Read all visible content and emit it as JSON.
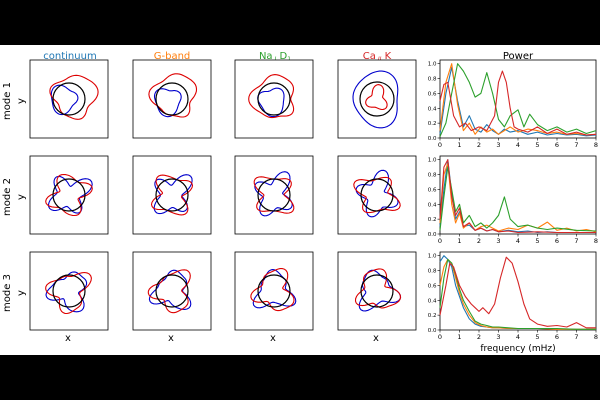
{
  "columns": [
    {
      "label": "continuum",
      "color": "#1f77b4"
    },
    {
      "label": "G-band",
      "color": "#ff7f0e"
    },
    {
      "label": "Na",
      "sub": "I",
      "label_post": " D",
      "sub2": "1",
      "color": "#2ca02c"
    },
    {
      "label": "Ca",
      "sub": "II",
      "label_post": " K",
      "color": "#d62728"
    }
  ],
  "rows": [
    {
      "label": "mode 1"
    },
    {
      "label": "mode 2"
    },
    {
      "label": "mode 3"
    }
  ],
  "axis_letters": {
    "x": "x",
    "y": "y"
  },
  "power_title": "Power",
  "chart_data": {
    "type": "line",
    "title": "Power",
    "xlabel": "frequency (mHz)",
    "ylabel": "",
    "xlim": [
      0,
      8
    ],
    "ylim": [
      0,
      1.05
    ],
    "xticks": [
      0,
      1,
      2,
      3,
      4,
      5,
      6,
      7,
      8
    ],
    "yticks": [
      0.0,
      0.2,
      0.4,
      0.6,
      0.8,
      1.0
    ],
    "series_colors": {
      "continuum": "#1f77b4",
      "G-band": "#ff7f0e",
      "Na I D1": "#2ca02c",
      "Ca II K": "#d62728"
    },
    "panels": [
      {
        "row": "mode 1",
        "series": [
          {
            "key": "continuum",
            "x": [
              0,
              0.3,
              0.6,
              0.9,
              1.2,
              1.5,
              1.8,
              2.1,
              2.4,
              2.7,
              3.0,
              3.3,
              3.6,
              4.0,
              4.5,
              5.0,
              5.5,
              6.0,
              6.5,
              7.0,
              7.5,
              8.0
            ],
            "y": [
              0.05,
              0.6,
              0.95,
              0.5,
              0.15,
              0.3,
              0.12,
              0.08,
              0.18,
              0.1,
              0.05,
              0.12,
              0.08,
              0.1,
              0.05,
              0.08,
              0.04,
              0.06,
              0.04,
              0.05,
              0.03,
              0.04
            ]
          },
          {
            "key": "G-band",
            "x": [
              0,
              0.3,
              0.6,
              0.9,
              1.2,
              1.5,
              1.8,
              2.1,
              2.4,
              2.7,
              3.0,
              3.3,
              3.6,
              4.0,
              4.5,
              5.0,
              5.5,
              6.0,
              6.5,
              7.0,
              7.5,
              8.0
            ],
            "y": [
              0.1,
              0.75,
              1.0,
              0.45,
              0.1,
              0.2,
              0.05,
              0.15,
              0.08,
              0.12,
              0.05,
              0.1,
              0.15,
              0.08,
              0.12,
              0.1,
              0.06,
              0.08,
              0.05,
              0.06,
              0.04,
              0.05
            ]
          },
          {
            "key": "Na I D1",
            "x": [
              0,
              0.3,
              0.6,
              0.9,
              1.2,
              1.5,
              1.8,
              2.1,
              2.4,
              2.7,
              3.0,
              3.3,
              3.6,
              4.0,
              4.3,
              4.6,
              5.0,
              5.5,
              6.0,
              6.5,
              7.0,
              7.5,
              8.0
            ],
            "y": [
              0.02,
              0.2,
              0.6,
              1.0,
              0.9,
              0.75,
              0.55,
              0.6,
              0.88,
              0.6,
              0.25,
              0.15,
              0.3,
              0.38,
              0.15,
              0.32,
              0.18,
              0.1,
              0.15,
              0.08,
              0.12,
              0.06,
              0.1
            ]
          },
          {
            "key": "Ca II K",
            "x": [
              0,
              0.2,
              0.4,
              0.7,
              1.0,
              1.3,
              1.6,
              2.0,
              2.4,
              2.8,
              3.0,
              3.2,
              3.4,
              3.6,
              3.8,
              4.0,
              4.5,
              5.0,
              5.5,
              6.0,
              6.5,
              7.0,
              7.5,
              8.0
            ],
            "y": [
              0.5,
              0.72,
              0.75,
              0.3,
              0.15,
              0.2,
              0.1,
              0.15,
              0.1,
              0.3,
              0.75,
              0.9,
              0.75,
              0.4,
              0.15,
              0.12,
              0.08,
              0.15,
              0.06,
              0.12,
              0.05,
              0.08,
              0.04,
              0.05
            ]
          }
        ]
      },
      {
        "row": "mode 2",
        "series": [
          {
            "key": "continuum",
            "x": [
              0,
              0.2,
              0.4,
              0.6,
              0.8,
              1.0,
              1.2,
              1.5,
              1.8,
              2.1,
              2.4,
              2.7,
              3.0,
              3.5,
              4.0,
              4.5,
              5.0,
              5.5,
              6.0,
              7.0,
              8.0
            ],
            "y": [
              0.1,
              0.6,
              1.0,
              0.55,
              0.2,
              0.3,
              0.1,
              0.12,
              0.05,
              0.08,
              0.04,
              0.06,
              0.03,
              0.05,
              0.03,
              0.04,
              0.02,
              0.03,
              0.02,
              0.02,
              0.02
            ]
          },
          {
            "key": "G-band",
            "x": [
              0,
              0.2,
              0.4,
              0.6,
              0.8,
              1.0,
              1.2,
              1.5,
              1.8,
              2.1,
              2.4,
              2.7,
              3.0,
              3.5,
              4.0,
              4.5,
              5.0,
              5.5,
              6.0,
              6.5,
              7.0,
              7.5,
              8.0
            ],
            "y": [
              0.15,
              0.8,
              0.95,
              0.4,
              0.15,
              0.28,
              0.08,
              0.15,
              0.05,
              0.1,
              0.12,
              0.08,
              0.04,
              0.08,
              0.06,
              0.12,
              0.08,
              0.16,
              0.05,
              0.08,
              0.04,
              0.06,
              0.03
            ]
          },
          {
            "key": "Na I D1",
            "x": [
              0,
              0.2,
              0.4,
              0.6,
              0.8,
              1.0,
              1.2,
              1.5,
              1.8,
              2.1,
              2.4,
              2.7,
              3.0,
              3.3,
              3.6,
              4.0,
              4.5,
              5.0,
              5.5,
              6.0,
              7.0,
              8.0
            ],
            "y": [
              0.05,
              0.5,
              0.9,
              0.6,
              0.3,
              0.4,
              0.15,
              0.25,
              0.1,
              0.15,
              0.08,
              0.15,
              0.25,
              0.5,
              0.2,
              0.1,
              0.12,
              0.08,
              0.06,
              0.08,
              0.05,
              0.04
            ]
          },
          {
            "key": "Ca II K",
            "x": [
              0,
              0.2,
              0.4,
              0.6,
              0.8,
              1.0,
              1.2,
              1.5,
              1.8,
              2.1,
              2.4,
              2.7,
              3.0,
              3.5,
              4.0,
              5.0,
              6.0,
              7.0,
              8.0
            ],
            "y": [
              0.2,
              0.9,
              1.0,
              0.5,
              0.25,
              0.35,
              0.1,
              0.15,
              0.05,
              0.08,
              0.04,
              0.06,
              0.03,
              0.04,
              0.02,
              0.03,
              0.02,
              0.02,
              0.02
            ]
          }
        ]
      },
      {
        "row": "mode 3",
        "series": [
          {
            "key": "continuum",
            "x": [
              0,
              0.2,
              0.4,
              0.6,
              0.8,
              1.0,
              1.2,
              1.5,
              1.8,
              2.1,
              2.4,
              2.7,
              3.0,
              3.5,
              4.0,
              5.0,
              6.0,
              7.0,
              8.0
            ],
            "y": [
              0.92,
              1.0,
              0.95,
              0.85,
              0.6,
              0.45,
              0.3,
              0.15,
              0.08,
              0.05,
              0.04,
              0.03,
              0.03,
              0.02,
              0.02,
              0.02,
              0.01,
              0.01,
              0.01
            ]
          },
          {
            "key": "G-band",
            "x": [
              0,
              0.2,
              0.4,
              0.6,
              0.8,
              1.0,
              1.2,
              1.5,
              1.8,
              2.1,
              2.4,
              2.7,
              3.0,
              3.5,
              4.0,
              5.0,
              6.0,
              7.0,
              8.0
            ],
            "y": [
              0.6,
              0.85,
              0.95,
              0.9,
              0.7,
              0.5,
              0.35,
              0.2,
              0.1,
              0.06,
              0.04,
              0.03,
              0.03,
              0.02,
              0.02,
              0.02,
              0.01,
              0.01,
              0.01
            ]
          },
          {
            "key": "Na I D1",
            "x": [
              0,
              0.2,
              0.4,
              0.6,
              0.8,
              1.0,
              1.2,
              1.5,
              1.8,
              2.1,
              2.4,
              2.7,
              3.0,
              3.5,
              4.0,
              5.0,
              6.0,
              7.0,
              8.0
            ],
            "y": [
              0.3,
              0.7,
              0.95,
              0.9,
              0.75,
              0.55,
              0.4,
              0.25,
              0.12,
              0.08,
              0.06,
              0.04,
              0.04,
              0.03,
              0.02,
              0.02,
              0.02,
              0.01,
              0.01
            ]
          },
          {
            "key": "Ca II K",
            "x": [
              0,
              0.3,
              0.5,
              0.7,
              1.0,
              1.3,
              1.6,
              1.8,
              2.0,
              2.2,
              2.5,
              2.8,
              3.1,
              3.4,
              3.7,
              4.0,
              4.3,
              4.6,
              5.0,
              5.5,
              6.0,
              6.5,
              7.0,
              7.5,
              8.0
            ],
            "y": [
              0.2,
              0.6,
              0.9,
              0.85,
              0.6,
              0.45,
              0.35,
              0.3,
              0.25,
              0.3,
              0.22,
              0.35,
              0.7,
              0.98,
              0.9,
              0.65,
              0.35,
              0.15,
              0.08,
              0.05,
              0.06,
              0.04,
              0.1,
              0.03,
              0.03
            ]
          }
        ]
      }
    ]
  }
}
